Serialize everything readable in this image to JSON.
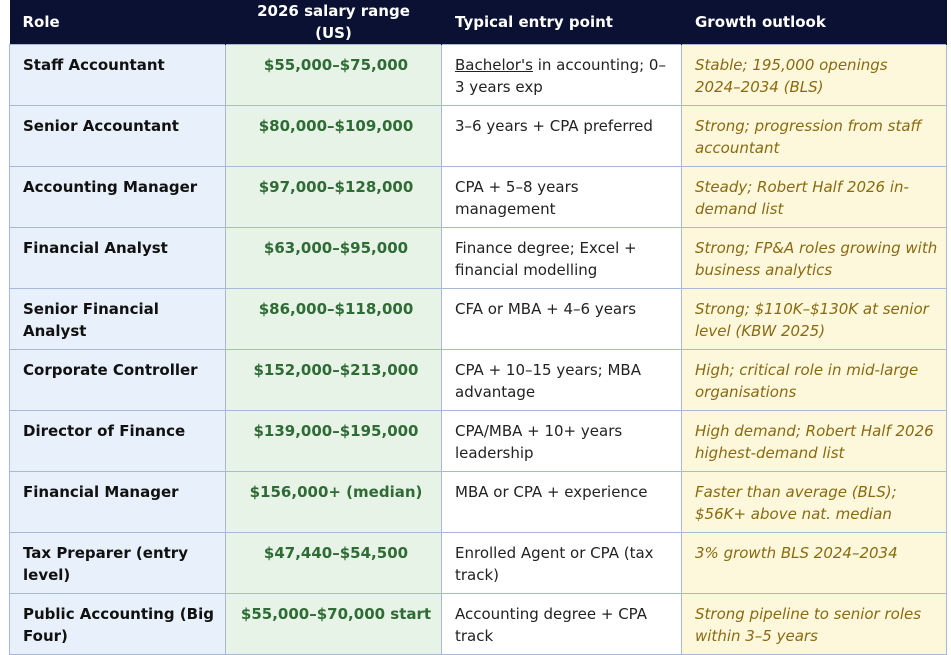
{
  "headers": {
    "role": "Role",
    "salary": "2026 salary range (US)",
    "entry": "Typical entry point",
    "growth": "Growth outlook"
  },
  "rows": [
    {
      "role": "Staff Accountant",
      "salary": "$55,000–$75,000",
      "entry_prefix": "Bachelor's",
      "entry": " in accounting; 0–3 years exp",
      "growth": "Stable; 195,000 openings 2024–2034 (BLS)"
    },
    {
      "role": "Senior Accountant",
      "salary": "$80,000–$109,000",
      "entry_prefix": "",
      "entry": "3–6 years + CPA preferred",
      "growth": "Strong; progression from staff accountant"
    },
    {
      "role": "Accounting Manager",
      "salary": "$97,000–$128,000",
      "entry_prefix": "",
      "entry": "CPA + 5–8 years management",
      "growth": "Steady; Robert Half 2026 in-demand list"
    },
    {
      "role": "Financial Analyst",
      "salary": "$63,000–$95,000",
      "entry_prefix": "",
      "entry": "Finance degree; Excel + financial modelling",
      "growth": "Strong; FP&A roles growing with business analytics"
    },
    {
      "role": "Senior Financial Analyst",
      "salary": "$86,000–$118,000",
      "entry_prefix": "",
      "entry": "CFA or MBA + 4–6 years",
      "growth": "Strong; $110K–$130K at senior level (KBW 2025)"
    },
    {
      "role": "Corporate Controller",
      "salary": "$152,000–$213,000",
      "entry_prefix": "",
      "entry": "CPA + 10–15 years; MBA advantage",
      "growth": "High; critical role in mid-large organisations"
    },
    {
      "role": "Director of Finance",
      "salary": "$139,000–$195,000",
      "entry_prefix": "",
      "entry": "CPA/MBA + 10+ years leadership",
      "growth": "High demand; Robert Half 2026 highest-demand list"
    },
    {
      "role": "Financial Manager",
      "salary": "$156,000+ (median)",
      "entry_prefix": "",
      "entry": "MBA or CPA + experience",
      "growth": "Faster than average (BLS); $56K+ above nat. median"
    },
    {
      "role": "Tax Preparer (entry level)",
      "salary": "$47,440–$54,500",
      "entry_prefix": "",
      "entry": "Enrolled Agent or CPA (tax track)",
      "growth": "3% growth BLS 2024–2034"
    },
    {
      "role": "Public Accounting (Big Four)",
      "salary": "$55,000–$70,000 start",
      "entry_prefix": "",
      "entry": "Accounting degree + CPA track",
      "growth": "Strong pipeline to senior roles within 3–5 years"
    }
  ]
}
